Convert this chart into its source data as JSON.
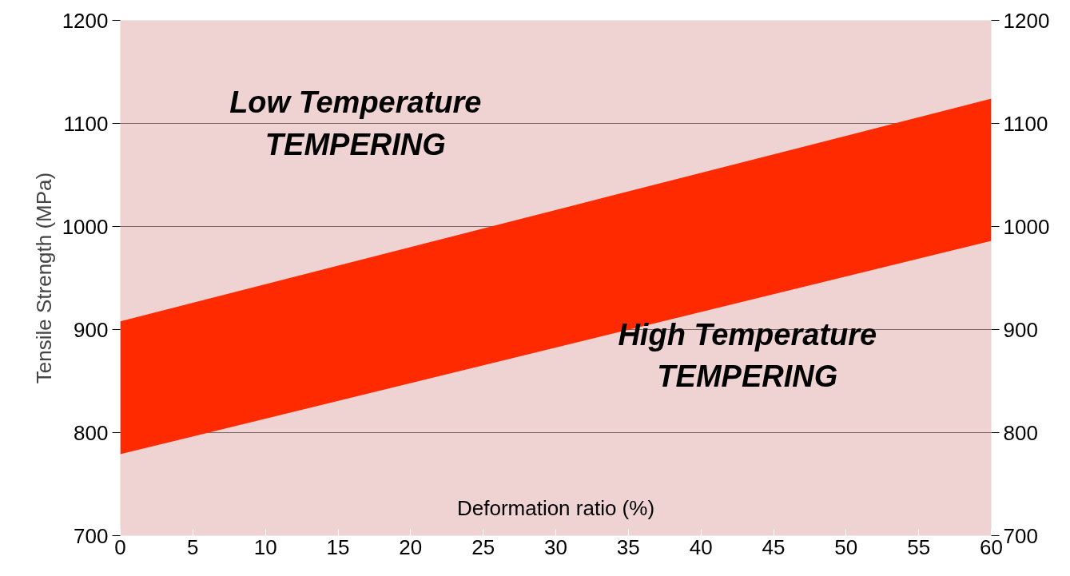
{
  "chart_data": {
    "type": "line",
    "xlabel": "Deformation ratio (%)",
    "ylabel": "Tensile Strength (MPa)",
    "x": [
      0,
      60
    ],
    "series": [
      {
        "color": "#ff2a00",
        "values": [
          null,
          null
        ],
        "lower": [
          779,
          986
        ],
        "upper": [
          908,
          1124
        ]
      }
    ],
    "xlim": [
      0,
      60
    ],
    "xticks": [
      0,
      5,
      10,
      15,
      20,
      25,
      30,
      35,
      40,
      45,
      50,
      55,
      60
    ],
    "ylim": [
      700,
      1200
    ],
    "yticks": [
      700,
      800,
      900,
      1000,
      1100,
      1200
    ],
    "y2lim": [
      700,
      1200
    ],
    "y2ticks": [
      700,
      800,
      900,
      1000,
      1100,
      1200
    ],
    "grid": "y",
    "annotations": [
      "Low Temperature\nTEMPERING",
      "High Temperature\nTEMPERING"
    ]
  }
}
